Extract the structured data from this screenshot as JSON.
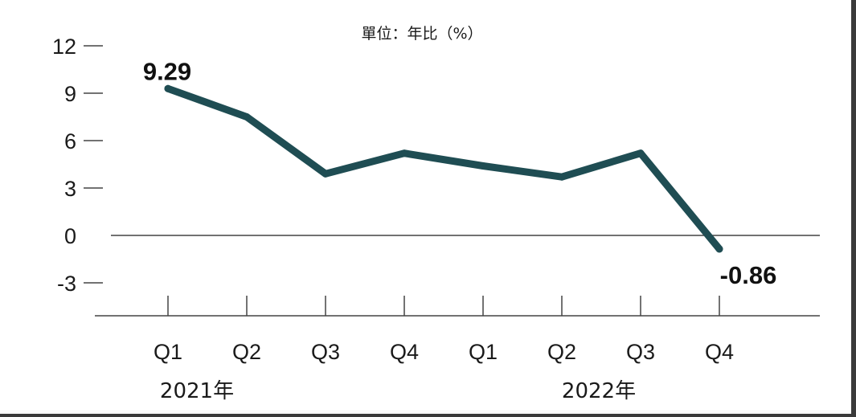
{
  "chart_data": {
    "type": "line",
    "unit_label": "單位：年比（%）",
    "categories": [
      "Q1",
      "Q2",
      "Q3",
      "Q4",
      "Q1",
      "Q2",
      "Q3",
      "Q4"
    ],
    "groups": [
      {
        "label": "2021年",
        "from": 0,
        "to": 3
      },
      {
        "label": "2022年",
        "from": 4,
        "to": 7
      }
    ],
    "series": [
      {
        "values": [
          9.29,
          7.5,
          3.9,
          5.2,
          4.4,
          3.7,
          5.2,
          -0.86
        ],
        "color": "#1f4d53"
      }
    ],
    "data_labels": [
      {
        "index": 0,
        "text": "9.29"
      },
      {
        "index": 7,
        "text": "-0.86"
      }
    ],
    "yticks": [
      "12",
      "9",
      "6",
      "3",
      "0",
      "-3"
    ],
    "ylim": [
      -5,
      12
    ],
    "grid": false
  }
}
